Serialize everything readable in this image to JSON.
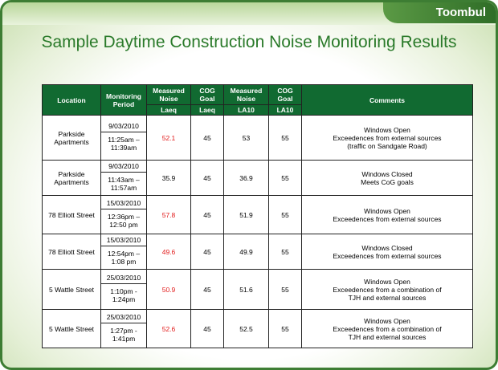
{
  "header": {
    "tab": "Toombul",
    "title": "Sample Daytime Construction Noise Monitoring Results"
  },
  "table": {
    "headers": [
      "Location",
      "Monitoring Period",
      "Measured Noise",
      "COG Goal",
      "Measured Noise",
      "COG Goal",
      "Comments"
    ],
    "subheaders": [
      "Laeq",
      "Laeq",
      "LA10",
      "LA10"
    ],
    "rows": [
      {
        "location": "Parkside Apartments",
        "date": "9/03/2010",
        "time": "11:25am – 11:39am",
        "laeq": 52.1,
        "cog_laeq": 45,
        "la10": 53,
        "cog_la10": 55,
        "comments": [
          "Windows Open",
          "Exceedences from external sources",
          "(traffic on Sandgate Road)"
        ]
      },
      {
        "location": "Parkside Apartments",
        "date": "9/03/2010",
        "time": "11:43am – 11:57am",
        "laeq": 35.9,
        "cog_laeq": 45,
        "la10": 36.9,
        "cog_la10": 55,
        "comments": [
          "Windows Closed",
          "Meets CoG goals"
        ]
      },
      {
        "location": "78 Elliott Street",
        "date": "15/03/2010",
        "time": "12:36pm – 12:50 pm",
        "laeq": 57.8,
        "cog_laeq": 45,
        "la10": 51.9,
        "cog_la10": 55,
        "comments": [
          "Windows Open",
          "Exceedences from external sources"
        ]
      },
      {
        "location": "78 Elliott Street",
        "date": "15/03/2010",
        "time": "12:54pm – 1:08 pm",
        "laeq": 49.6,
        "cog_laeq": 45,
        "la10": 49.9,
        "cog_la10": 55,
        "comments": [
          "Windows Closed",
          "Exceedences from external sources"
        ]
      },
      {
        "location": "5 Wattle Street",
        "date": "25/03/2010",
        "time": "1:10pm - 1:24pm",
        "laeq": 50.9,
        "cog_laeq": 45,
        "la10": 51.6,
        "cog_la10": 55,
        "comments": [
          "Windows Open",
          "Exceedences from a combination of",
          "TJH and external sources"
        ]
      },
      {
        "location": "5 Wattle Street",
        "date": "25/03/2010",
        "time": "1:27pm - 1:41pm",
        "laeq": 52.6,
        "cog_laeq": 45,
        "la10": 52.5,
        "cog_la10": 55,
        "comments": [
          "Windows Open",
          "Exceedences from a combination of",
          "TJH and external sources"
        ]
      }
    ]
  }
}
